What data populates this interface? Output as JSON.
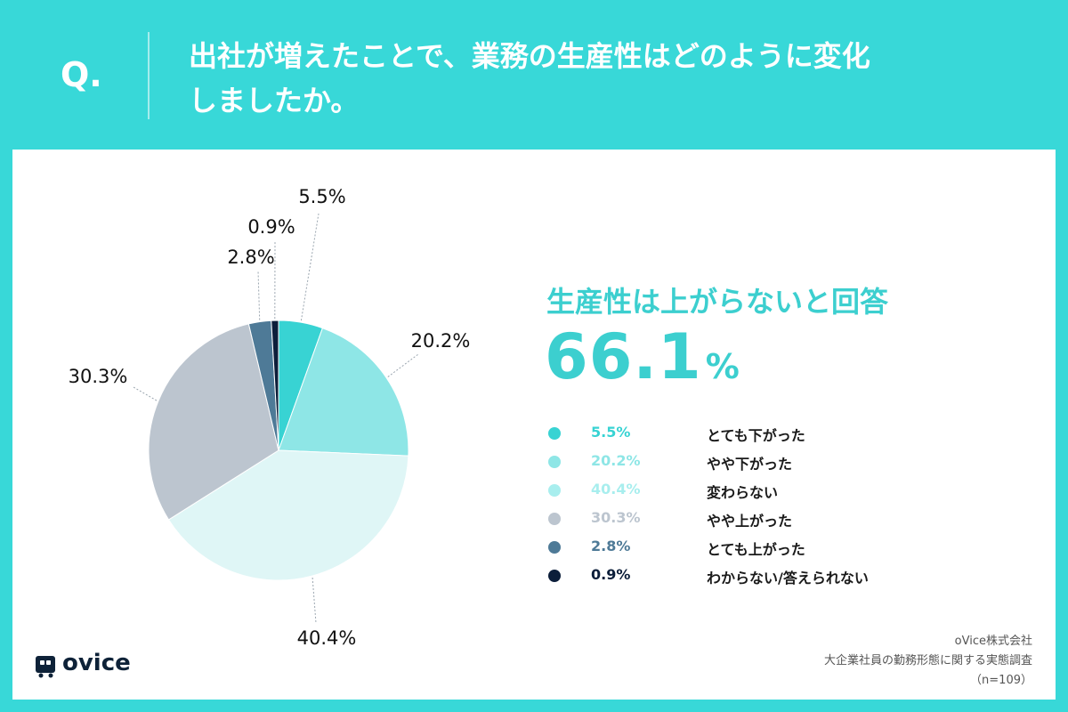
{
  "header": {
    "q_mark": "Q.",
    "question_line1": "出社が増えたことで、業務の生産性はどのように変化",
    "question_line2": "しましたか。"
  },
  "summary": {
    "headline": "生産性は上がらないと回答",
    "value": "66.1",
    "unit": "%"
  },
  "chart_data": {
    "type": "pie",
    "start_angle": "12 o'clock",
    "direction": "clockwise",
    "slices": [
      {
        "label": "とても下がった",
        "value": 5.5,
        "display": "5.5%",
        "color": "#38d3d3"
      },
      {
        "label": "やや下がった",
        "value": 20.2,
        "display": "20.2%",
        "color": "#8ee6e6"
      },
      {
        "label": "変わらない",
        "value": 40.4,
        "display": "40.4%",
        "color": "#dff6f6"
      },
      {
        "label": "やや上がった",
        "value": 30.3,
        "display": "30.3%",
        "color": "#bcc5cf"
      },
      {
        "label": "とても上がった",
        "value": 2.8,
        "display": "2.8%",
        "color": "#4e7a97"
      },
      {
        "label": "わからない/答えられない",
        "value": 0.9,
        "display": "0.9%",
        "color": "#0c1e3a"
      }
    ]
  },
  "legend": {
    "items": [
      {
        "pct": "5.5%",
        "label": "とても下がった",
        "pct_color": "#38d3d3"
      },
      {
        "pct": "20.2%",
        "label": "やや下がった",
        "pct_color": "#8ee6e6"
      },
      {
        "pct": "40.4%",
        "label": "変わらない",
        "pct_color": "#a8eeee"
      },
      {
        "pct": "30.3%",
        "label": "やや上がった",
        "pct_color": "#bcc5cf"
      },
      {
        "pct": "2.8%",
        "label": "とても上がった",
        "pct_color": "#4e7a97"
      },
      {
        "pct": "0.9%",
        "label": "わからない/答えられない",
        "pct_color": "#0c1e3a"
      }
    ]
  },
  "footer": {
    "brand": "ovice",
    "source_company": "oVice株式会社",
    "source_title": "大企業社員の勤務形態に関する実態調査",
    "sample": "（n=109）"
  }
}
